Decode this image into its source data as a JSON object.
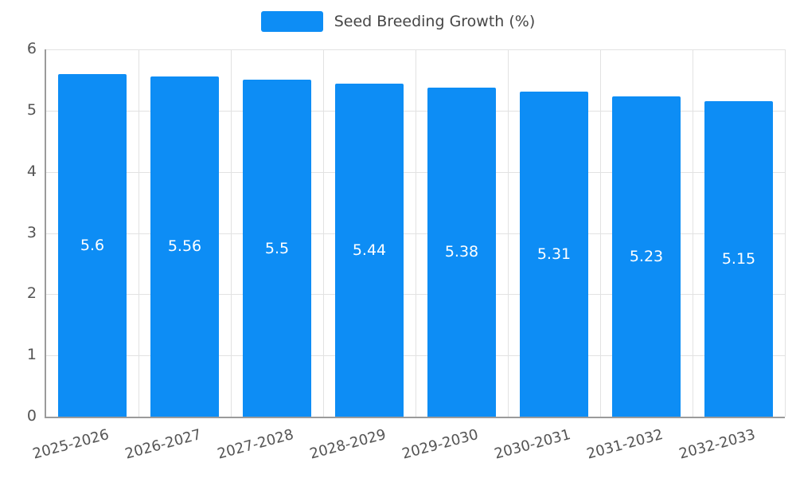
{
  "chart_data": {
    "type": "bar",
    "legend_label": "Seed Breeding Growth (%)",
    "legend_position": "top",
    "categories": [
      "2025-2026",
      "2026-2027",
      "2027-2028",
      "2028-2029",
      "2029-2030",
      "2030-2031",
      "2031-2032",
      "2032-2033"
    ],
    "values": [
      5.6,
      5.56,
      5.5,
      5.44,
      5.38,
      5.31,
      5.23,
      5.15
    ],
    "value_labels": [
      "5.6",
      "5.56",
      "5.5",
      "5.44",
      "5.38",
      "5.31",
      "5.23",
      "5.15"
    ],
    "xlabel": "",
    "ylabel": "",
    "ylim": [
      0,
      6
    ],
    "yticks": [
      0,
      1,
      2,
      3,
      4,
      5,
      6
    ],
    "grid": true,
    "colors": {
      "bar": "#0d8df5",
      "bar_value_text": "#ffffff",
      "grid_line": "#e2e2e2",
      "axis_line": "#9b9b9b",
      "tick_text": "#555555",
      "legend_text": "#464646"
    }
  }
}
